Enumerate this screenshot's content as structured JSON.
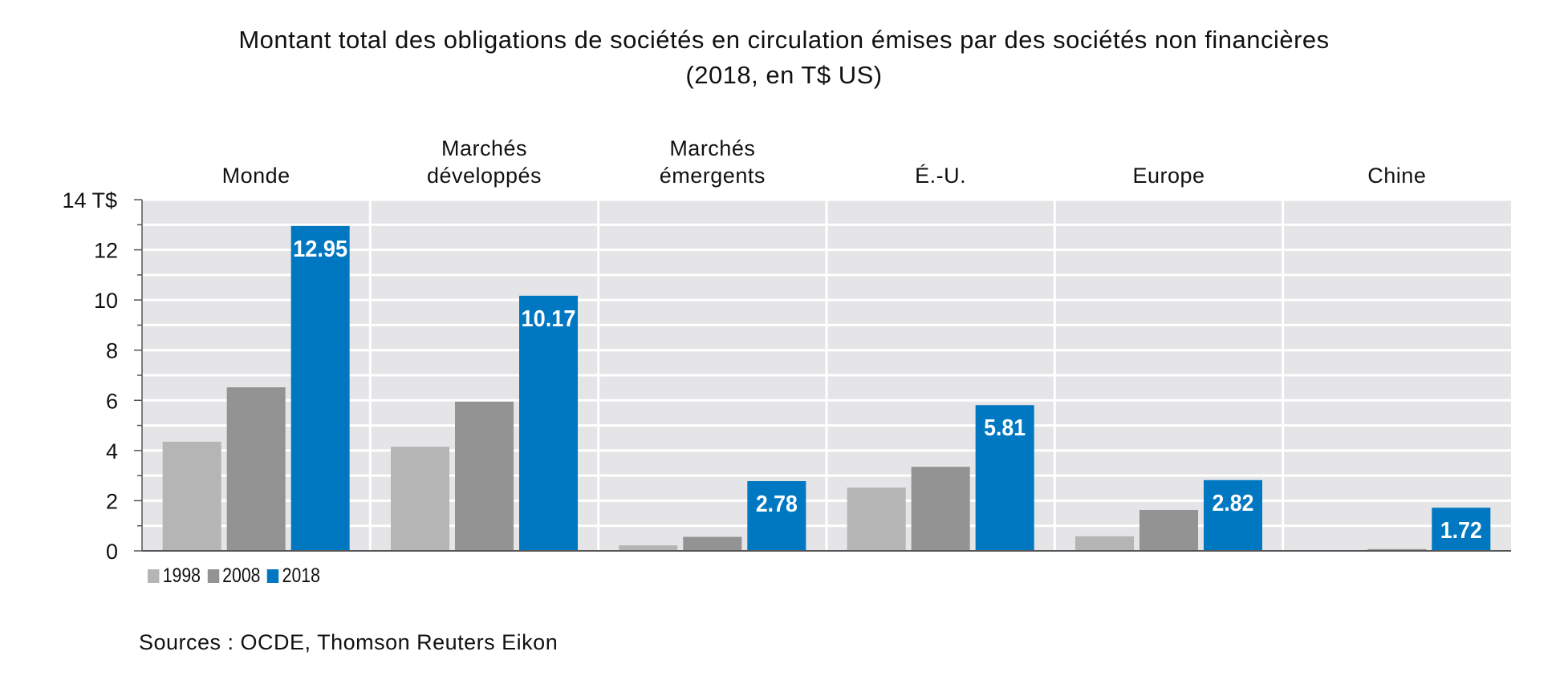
{
  "title": {
    "line1": "Montant total des obligations de sociétés en circulation émises par des sociétés non financières",
    "line2": "(2018, en T$ US)"
  },
  "source": "Sources : OCDE, Thomson Reuters Eikon",
  "colors": {
    "s1998": "#b5b5b5",
    "s2008": "#939393",
    "s2018": "#0077c1",
    "panel": "#e5e4e6",
    "grid": "#ffffff"
  },
  "chart_data": {
    "type": "bar",
    "categories": [
      [
        "Monde"
      ],
      [
        "Marchés",
        "développés"
      ],
      [
        "Marchés",
        "émergents"
      ],
      [
        "É.-U."
      ],
      [
        "Europe"
      ],
      [
        "Chine"
      ]
    ],
    "series": [
      {
        "name": "1998",
        "values": [
          4.35,
          4.15,
          0.22,
          2.52,
          0.58,
          0.0
        ]
      },
      {
        "name": "2008",
        "values": [
          6.52,
          5.95,
          0.56,
          3.35,
          1.63,
          0.07
        ]
      },
      {
        "name": "2018",
        "values": [
          12.95,
          10.17,
          2.78,
          5.81,
          2.82,
          1.72
        ],
        "labels": [
          "12.95",
          "10.17",
          "2.78",
          "5.81",
          "2.82",
          "1.72"
        ]
      }
    ],
    "y_ticks": [
      "0",
      "2",
      "4",
      "6",
      "8",
      "10",
      "12",
      "14 T$"
    ],
    "ylim": [
      0,
      14
    ],
    "grid": true,
    "legend": "bottom-left"
  }
}
